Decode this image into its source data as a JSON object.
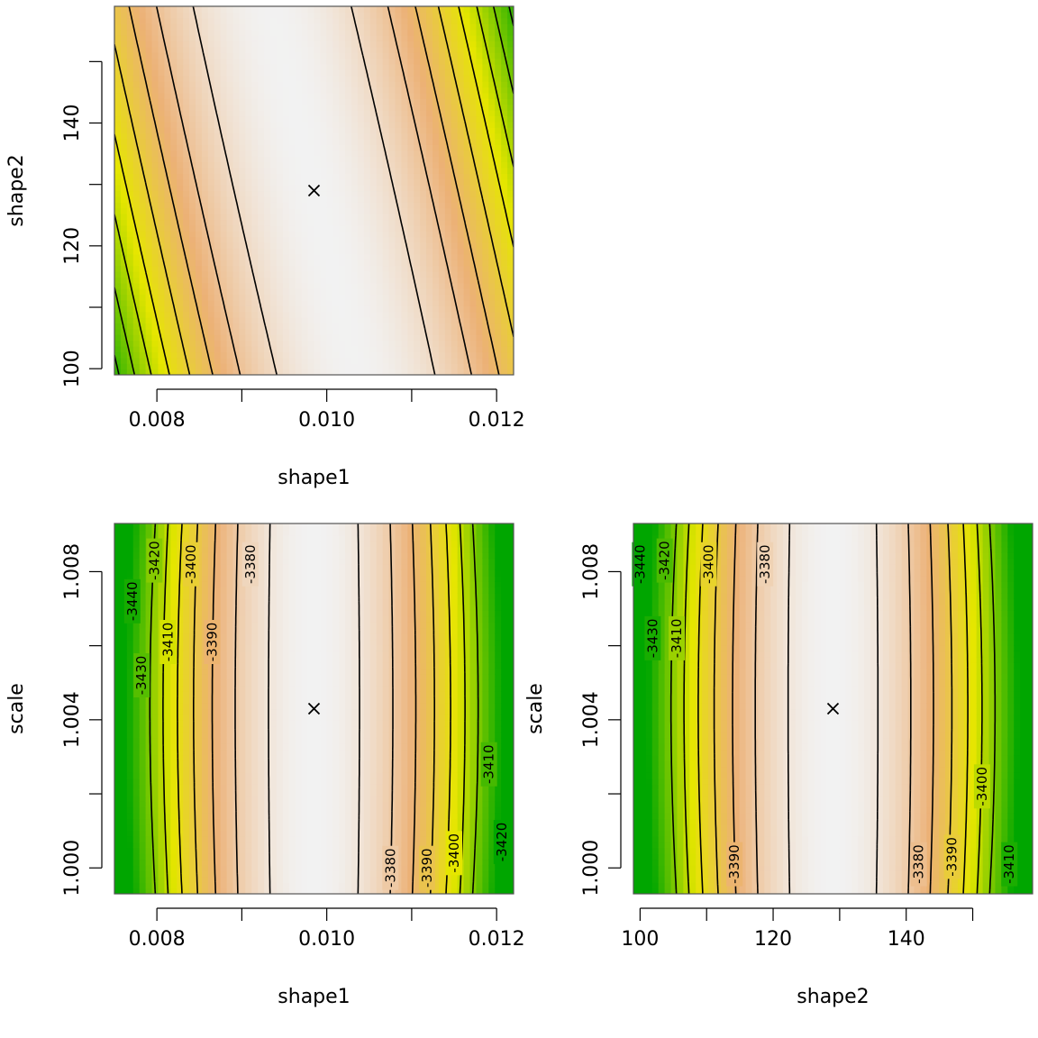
{
  "chart_data": [
    {
      "type": "heatmap",
      "subtype": "log-likelihood contour plot",
      "xlabel": "shape1",
      "ylabel": "shape2",
      "xlim": [
        0.0075,
        0.0122
      ],
      "ylim": [
        99,
        159
      ],
      "x_ticks": [
        0.008,
        0.009,
        0.01,
        0.011,
        0.012
      ],
      "x_tick_labels": [
        "0.008",
        "",
        "0.010",
        "",
        "0.012"
      ],
      "y_ticks": [
        100,
        110,
        120,
        130,
        140,
        150
      ],
      "y_tick_labels": [
        "100",
        "",
        "120",
        "",
        "140",
        ""
      ],
      "maximum": {
        "x": 0.00985,
        "y": 129
      },
      "contour_labels": [],
      "color_scale": [
        "#00A600",
        "#E6E600",
        "#ECB176",
        "#F2F2F2"
      ]
    },
    {
      "type": "heatmap",
      "subtype": "log-likelihood contour plot",
      "xlabel": "shape1",
      "ylabel": "scale",
      "xlim": [
        0.0075,
        0.0122
      ],
      "ylim": [
        0.9993,
        1.0093
      ],
      "x_ticks": [
        0.008,
        0.009,
        0.01,
        0.011,
        0.012
      ],
      "x_tick_labels": [
        "0.008",
        "",
        "0.010",
        "",
        "0.012"
      ],
      "y_ticks": [
        1.0,
        1.002,
        1.004,
        1.006,
        1.008
      ],
      "y_tick_labels": [
        "1.000",
        "",
        "1.004",
        "",
        "1.008"
      ],
      "maximum": {
        "x": 0.00985,
        "y": 1.0043
      },
      "contour_labels": [
        {
          "text": "-3440",
          "x": 0.00771,
          "y": 1.0072
        },
        {
          "text": "-3430",
          "x": 0.00782,
          "y": 1.0052
        },
        {
          "text": "-3420",
          "x": 0.00797,
          "y": 1.0083
        },
        {
          "text": "-3410",
          "x": 0.00813,
          "y": 1.0061
        },
        {
          "text": "-3400",
          "x": 0.0084,
          "y": 1.0082
        },
        {
          "text": "-3390",
          "x": 0.00865,
          "y": 1.0061
        },
        {
          "text": "-3380",
          "x": 0.0091,
          "y": 1.0082
        },
        {
          "text": "-3380",
          "x": 0.01075,
          "y": 1.0
        },
        {
          "text": "-3390",
          "x": 0.01118,
          "y": 1.0
        },
        {
          "text": "-3400",
          "x": 0.0115,
          "y": 1.0004
        },
        {
          "text": "-3410",
          "x": 0.01191,
          "y": 1.0028
        },
        {
          "text": "-3420",
          "x": 0.01206,
          "y": 1.0007
        }
      ],
      "color_scale": [
        "#00A600",
        "#E6E600",
        "#ECB176",
        "#F2F2F2"
      ]
    },
    {
      "type": "heatmap",
      "subtype": "log-likelihood contour plot",
      "xlabel": "shape2",
      "ylabel": "scale",
      "xlim": [
        99,
        159
      ],
      "ylim": [
        0.9993,
        1.0093
      ],
      "x_ticks": [
        100,
        110,
        120,
        130,
        140,
        150
      ],
      "x_tick_labels": [
        "100",
        "",
        "120",
        "",
        "140",
        ""
      ],
      "y_ticks": [
        1.0,
        1.002,
        1.004,
        1.006,
        1.008
      ],
      "y_tick_labels": [
        "1.000",
        "",
        "1.004",
        "",
        "1.008"
      ],
      "maximum": {
        "x": 129,
        "y": 1.0043
      },
      "contour_labels": [
        {
          "text": "-3440",
          "x": 100.0,
          "y": 1.0082
        },
        {
          "text": "-3430",
          "x": 101.9,
          "y": 1.0062
        },
        {
          "text": "-3420",
          "x": 103.7,
          "y": 1.0083
        },
        {
          "text": "-3410",
          "x": 105.5,
          "y": 1.0062
        },
        {
          "text": "-3400",
          "x": 110.3,
          "y": 1.0082
        },
        {
          "text": "-3390",
          "x": 114.2,
          "y": 1.0001
        },
        {
          "text": "-3380",
          "x": 118.8,
          "y": 1.0082
        },
        {
          "text": "-3380",
          "x": 141.9,
          "y": 1.0001
        },
        {
          "text": "-3390",
          "x": 146.9,
          "y": 1.0003
        },
        {
          "text": "-3400",
          "x": 151.4,
          "y": 1.0022
        },
        {
          "text": "-3410",
          "x": 155.5,
          "y": 1.0001
        }
      ],
      "color_scale": [
        "#00A600",
        "#E6E600",
        "#ECB176",
        "#F2F2F2"
      ]
    }
  ]
}
